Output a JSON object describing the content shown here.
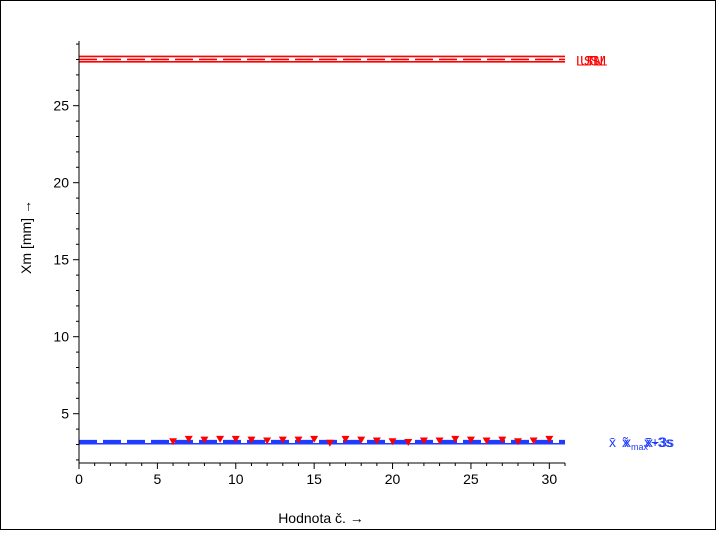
{
  "chart_data": {
    "type": "line",
    "xlabel": "Hodnota č. →",
    "ylabel": "Xm [mm] →",
    "xlim": [
      0,
      31
    ],
    "ylim": [
      1.8,
      29.2
    ],
    "x_ticks": [
      0,
      5,
      10,
      15,
      20,
      25,
      30
    ],
    "y_ticks": [
      5,
      10,
      15,
      20,
      25
    ],
    "grid": false,
    "colors": {
      "limits": "#ff0000",
      "stats": "#1f3cff",
      "markers": "#ff0000",
      "axis": "#000000"
    },
    "series": [
      {
        "marker": "triangle-down",
        "x": [
          6,
          7,
          8,
          9,
          10,
          11,
          12,
          13,
          14,
          15,
          16,
          17,
          18,
          19,
          20,
          21,
          22,
          23,
          24,
          25,
          26,
          27,
          28,
          29,
          30
        ],
        "values": [
          3.15,
          3.3,
          3.25,
          3.3,
          3.3,
          3.25,
          3.2,
          3.25,
          3.25,
          3.3,
          3.05,
          3.3,
          3.25,
          3.2,
          3.15,
          3.1,
          3.2,
          3.2,
          3.3,
          3.25,
          3.2,
          3.25,
          3.15,
          3.2,
          3.3
        ]
      }
    ],
    "reference_lines": [
      {
        "y": 28.2,
        "style": "solid",
        "color": "#ff0000"
      },
      {
        "y": 28.0,
        "style": "dashed",
        "color": "#ff0000"
      },
      {
        "y": 27.85,
        "style": "solid",
        "color": "#ff0000"
      },
      {
        "y": 3.25,
        "style": "dashed",
        "color": "#1f3cff"
      },
      {
        "y": 3.15,
        "style": "dashed",
        "color": "#1f3cff"
      },
      {
        "y": 3.05,
        "style": "solid",
        "color": "#1f3cff"
      }
    ],
    "upper_labels": [
      "LSL",
      "USL",
      "TM"
    ],
    "lower_labels": [
      {
        "base": "x̄",
        "sub": ""
      },
      {
        "base": "x̃",
        "sub": ""
      },
      {
        "base": "x",
        "sub": "max"
      },
      {
        "base": "x̄+3s",
        "sub": ""
      },
      {
        "base": "x̄-3s",
        "sub": ""
      }
    ]
  }
}
